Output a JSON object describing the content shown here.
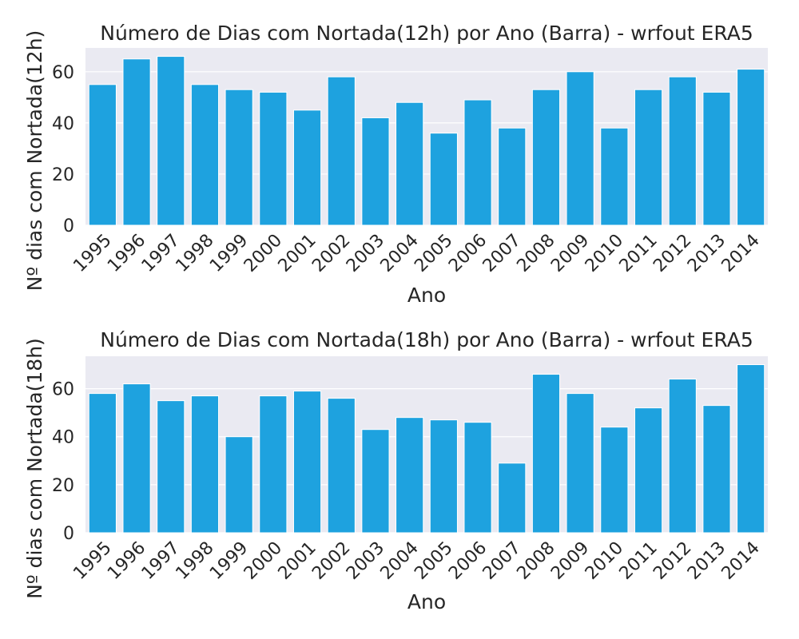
{
  "chart_data": [
    {
      "type": "bar",
      "title": "Número de Dias com Nortada(12h) por Ano (Barra) - wrfout ERA5",
      "xlabel": "Ano",
      "ylabel": "Nº dias com Nortada(12h)",
      "categories": [
        "1995",
        "1996",
        "1997",
        "1998",
        "1999",
        "2000",
        "2001",
        "2002",
        "2003",
        "2004",
        "2005",
        "2006",
        "2007",
        "2008",
        "2009",
        "2010",
        "2011",
        "2012",
        "2013",
        "2014"
      ],
      "values": [
        55,
        65,
        66,
        55,
        53,
        52,
        45,
        58,
        42,
        48,
        36,
        49,
        38,
        53,
        60,
        38,
        53,
        58,
        52,
        61
      ],
      "ylim": [
        0,
        69.3
      ],
      "yticks": [
        "0",
        "20",
        "40",
        "60"
      ],
      "grid": true,
      "bar_color": "#1ea2df",
      "background": "#eaeaf2"
    },
    {
      "type": "bar",
      "title": "Número de Dias com Nortada(18h) por Ano (Barra) - wrfout ERA5",
      "xlabel": "Ano",
      "ylabel": "Nº dias com Nortada(18h)",
      "categories": [
        "1995",
        "1996",
        "1997",
        "1998",
        "1999",
        "2000",
        "2001",
        "2002",
        "2003",
        "2004",
        "2005",
        "2006",
        "2007",
        "2008",
        "2009",
        "2010",
        "2011",
        "2012",
        "2013",
        "2014"
      ],
      "values": [
        58,
        62,
        55,
        57,
        40,
        57,
        59,
        56,
        43,
        48,
        47,
        46,
        29,
        66,
        58,
        44,
        52,
        64,
        53,
        70
      ],
      "ylim": [
        0,
        73.5
      ],
      "yticks": [
        "0",
        "20",
        "40",
        "60"
      ],
      "grid": true,
      "bar_color": "#1ea2df",
      "background": "#eaeaf2"
    }
  ]
}
